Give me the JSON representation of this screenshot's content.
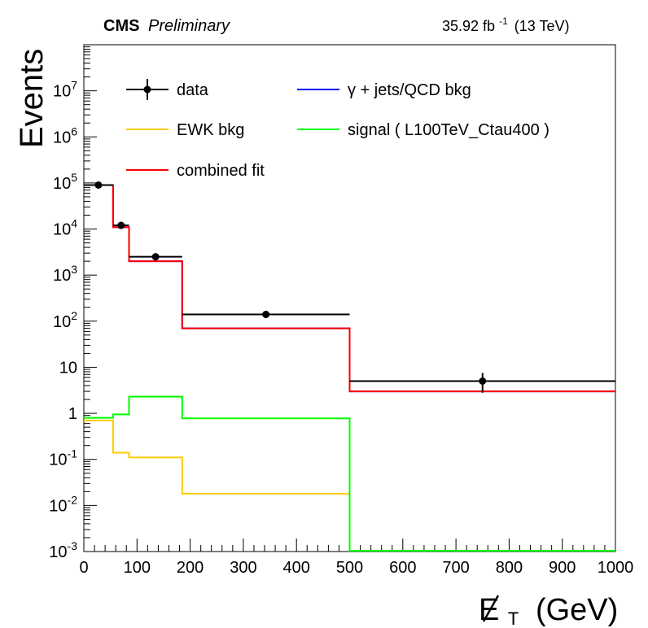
{
  "header": {
    "experiment": "CMS",
    "status": "Preliminary",
    "lumi_value": "35.92 fb",
    "lumi_exp": "-1",
    "energy": "(13 TeV)"
  },
  "chart_data": {
    "type": "line",
    "xlabel_main": "E",
    "xlabel_sub": "T",
    "xlabel_unit": "(GeV)",
    "ylabel": "Events",
    "xlim": [
      0,
      1000
    ],
    "ylim": [
      0.001,
      100000000
    ],
    "yscale": "log",
    "grid": false,
    "legend_position": "top-left",
    "bin_edges": [
      0,
      55,
      85,
      185,
      500,
      1000
    ],
    "x_ticks": [
      "0",
      "100",
      "200",
      "300",
      "400",
      "500",
      "600",
      "700",
      "800",
      "900",
      "1000"
    ],
    "y_ticks": [
      {
        "value": 0.001,
        "base": "10",
        "exp": "-3"
      },
      {
        "value": 0.01,
        "base": "10",
        "exp": "-2"
      },
      {
        "value": 0.1,
        "base": "10",
        "exp": "-1"
      },
      {
        "value": 1,
        "base": "1",
        "exp": ""
      },
      {
        "value": 10,
        "base": "10",
        "exp": ""
      },
      {
        "value": 100,
        "base": "10",
        "exp": "2"
      },
      {
        "value": 1000,
        "base": "10",
        "exp": "3"
      },
      {
        "value": 10000,
        "base": "10",
        "exp": "4"
      },
      {
        "value": 100000,
        "base": "10",
        "exp": "5"
      },
      {
        "value": 1000000,
        "base": "10",
        "exp": "6"
      },
      {
        "value": 10000000,
        "base": "10",
        "exp": "7"
      }
    ],
    "series": [
      {
        "name": "data",
        "kind": "points",
        "color": "#000000",
        "x": [
          27.5,
          70,
          135,
          342.5,
          750
        ],
        "values": [
          90000,
          12000,
          2500,
          140,
          5
        ],
        "err_low": [
          5000,
          800,
          150,
          12,
          2.2
        ],
        "err_high": [
          5000,
          800,
          150,
          12,
          2.5
        ]
      },
      {
        "name": "γ + jets/QCD bkg",
        "kind": "step",
        "color": "#0000ff",
        "values": [
          90000,
          11000,
          2000,
          70,
          3
        ]
      },
      {
        "name": "EWK bkg",
        "kind": "step",
        "color": "#ffcc00",
        "values": [
          0.7,
          0.14,
          0.11,
          0.018,
          0.001
        ]
      },
      {
        "name": "signal ( L100TeV_Ctau400 )",
        "kind": "step",
        "color": "#00ff00",
        "values": [
          0.8,
          0.95,
          2.3,
          0.78,
          0.001
        ]
      },
      {
        "name": "combined fit",
        "kind": "step",
        "color": "#ff0000",
        "values": [
          90000,
          11000,
          2000,
          70,
          3
        ]
      }
    ]
  }
}
